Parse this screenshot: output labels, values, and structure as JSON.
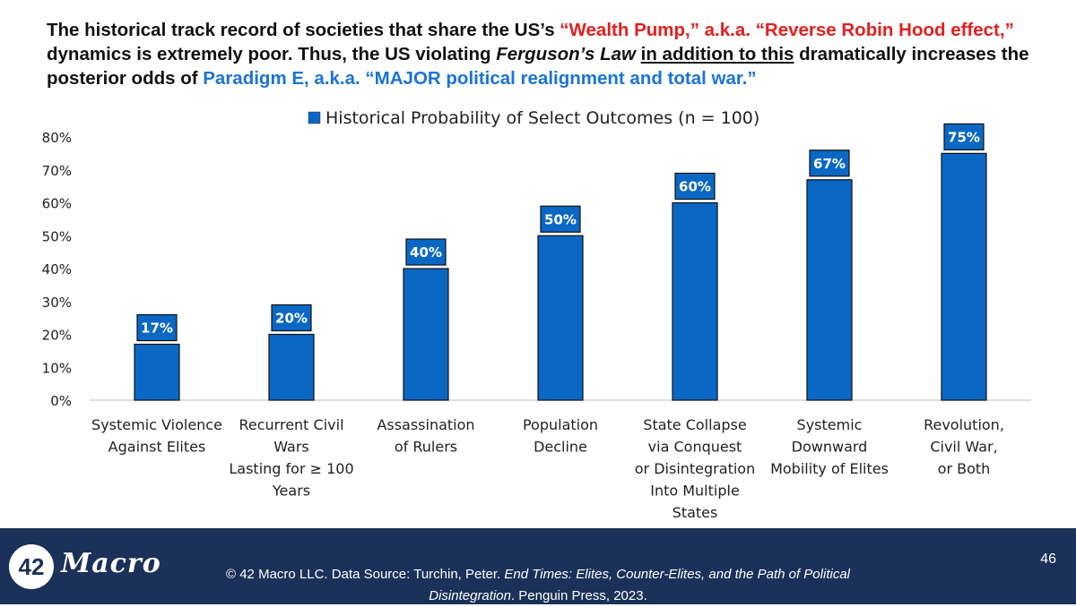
{
  "headline": {
    "p1": "The historical track record of societies that share the US’s ",
    "red": "“Wealth Pump,” a.k.a. “Reverse Robin Hood effect,”",
    "p2": " dynamics is extremely poor. Thus, the US violating ",
    "italic": "Ferguson’s Law",
    "p3": " ",
    "underline": "in addition to this",
    "p4": " dramatically increases the posterior odds of ",
    "blue": "Paradigm E, a.k.a. “MAJOR political realignment and total war.”"
  },
  "chart_data": {
    "type": "bar",
    "legend": "Historical Probability of Select Outcomes (n = 100)",
    "legend_position": "top",
    "categories": [
      [
        "Systemic Violence",
        "Against Elites"
      ],
      [
        "Recurrent Civil",
        "Wars",
        "Lasting for ≥ 100",
        "Years"
      ],
      [
        "Assassination",
        "of Rulers"
      ],
      [
        "Population",
        "Decline"
      ],
      [
        "State Collapse",
        "via Conquest",
        "or Disintegration",
        "Into Multiple",
        "States"
      ],
      [
        "Systemic",
        "Downward",
        "Mobility of Elites"
      ],
      [
        "Revolution,",
        "Civil War,",
        "or Both"
      ]
    ],
    "values": [
      17,
      20,
      40,
      50,
      60,
      67,
      75
    ],
    "data_labels": [
      "17%",
      "20%",
      "40%",
      "50%",
      "60%",
      "67%",
      "75%"
    ],
    "yticks": [
      "0%",
      "10%",
      "20%",
      "30%",
      "40%",
      "50%",
      "60%",
      "70%",
      "80%"
    ],
    "ylim": [
      0,
      80
    ],
    "grid": false,
    "bar_color": "#0a68c4",
    "label_bg": "#0a68c4"
  },
  "footer": {
    "logo_number": "42",
    "logo_word": "Macro",
    "source_p1": "© 42 Macro LLC. Data Source: Turchin, Peter. ",
    "source_italic": "End Times: Elites, Counter-Elites, and the Path of Political Disintegration",
    "source_p2": ". Penguin Press, 2023.",
    "page_number": "46"
  }
}
